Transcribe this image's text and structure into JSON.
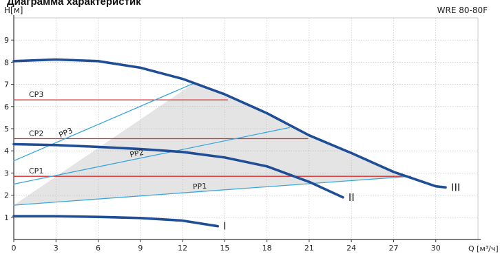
{
  "header": {
    "title": "Диаграмма характеристик",
    "model": "WRE 80-80F",
    "y_unit": "H[м]",
    "x_unit": "Q [м³/ч]"
  },
  "colors": {
    "pump_curve": "#1f4e96",
    "proportional_line": "#3aa6dc",
    "constant_line": "#dd2a2a",
    "fill": "#e4e4e4",
    "grid": "#b7b7b7",
    "axis": "#333333"
  },
  "chart_data": {
    "type": "line",
    "title": "Диаграмма характеристик",
    "xlabel": "Q [м³/ч]",
    "ylabel": "H[м]",
    "xlim": [
      0,
      33
    ],
    "ylim": [
      0,
      10
    ],
    "x_ticks": [
      0,
      3,
      6,
      9,
      12,
      15,
      18,
      21,
      24,
      27,
      30
    ],
    "y_ticks": [
      1,
      2,
      3,
      4,
      5,
      6,
      7,
      8,
      9
    ],
    "grid": true,
    "series": [
      {
        "name": "III",
        "kind": "pump",
        "points": [
          [
            0,
            8.05
          ],
          [
            3,
            8.12
          ],
          [
            6,
            8.05
          ],
          [
            9,
            7.75
          ],
          [
            12,
            7.25
          ],
          [
            15,
            6.55
          ],
          [
            18,
            5.7
          ],
          [
            21,
            4.7
          ],
          [
            24,
            3.9
          ],
          [
            27,
            3.05
          ],
          [
            30,
            2.4
          ],
          [
            30.7,
            2.35
          ]
        ]
      },
      {
        "name": "II",
        "kind": "pump",
        "points": [
          [
            0,
            4.3
          ],
          [
            3,
            4.26
          ],
          [
            6,
            4.18
          ],
          [
            9,
            4.08
          ],
          [
            12,
            3.95
          ],
          [
            15,
            3.7
          ],
          [
            18,
            3.3
          ],
          [
            21,
            2.6
          ],
          [
            23.4,
            1.9
          ]
        ]
      },
      {
        "name": "I",
        "kind": "pump",
        "points": [
          [
            0,
            1.05
          ],
          [
            3,
            1.05
          ],
          [
            6,
            1.02
          ],
          [
            9,
            0.97
          ],
          [
            12,
            0.85
          ],
          [
            14.5,
            0.6
          ]
        ]
      },
      {
        "name": "PP3",
        "kind": "proportional",
        "points": [
          [
            0,
            3.55
          ],
          [
            12.8,
            7.05
          ]
        ]
      },
      {
        "name": "PP2",
        "kind": "proportional",
        "points": [
          [
            0,
            2.5
          ],
          [
            19.6,
            5.05
          ]
        ]
      },
      {
        "name": "PP1",
        "kind": "proportional",
        "points": [
          [
            0,
            1.55
          ],
          [
            28.2,
            2.85
          ]
        ]
      },
      {
        "name": "CP3",
        "kind": "constant",
        "points": [
          [
            0,
            6.3
          ],
          [
            15.2,
            6.3
          ]
        ]
      },
      {
        "name": "CP2",
        "kind": "constant",
        "points": [
          [
            0,
            4.55
          ],
          [
            20.9,
            4.55
          ]
        ]
      },
      {
        "name": "CP1",
        "kind": "constant",
        "points": [
          [
            0,
            2.85
          ],
          [
            28.2,
            2.85
          ]
        ]
      }
    ],
    "operating_area": [
      [
        0,
        1.55
      ],
      [
        28.2,
        2.85
      ],
      [
        27,
        3.05
      ],
      [
        24,
        3.9
      ],
      [
        21,
        4.7
      ],
      [
        18,
        5.7
      ],
      [
        15,
        6.55
      ],
      [
        12.8,
        7.05
      ]
    ]
  }
}
